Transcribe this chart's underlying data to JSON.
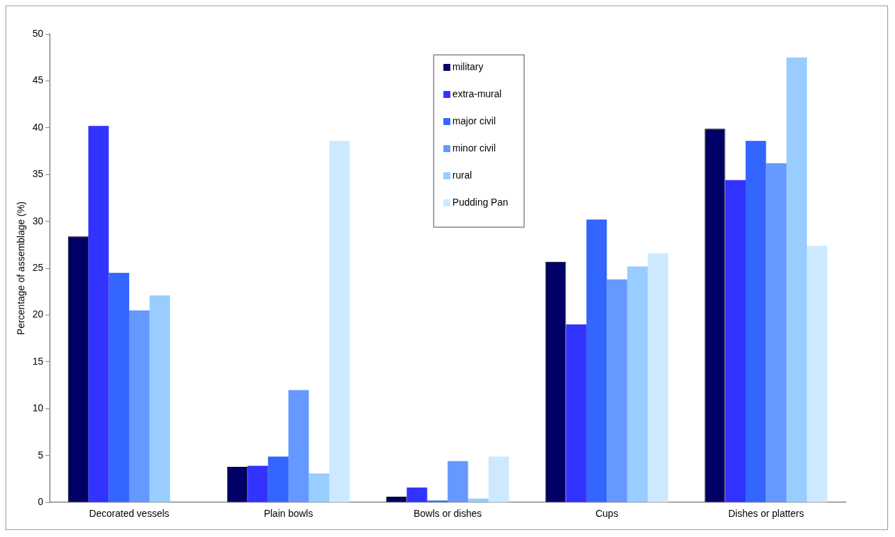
{
  "chart_data": {
    "type": "bar",
    "ylabel": "Percentage of assemblage (%)",
    "categories": [
      "Decorated vessels",
      "Plain bowls",
      "Bowls or dishes",
      "Cups",
      "Dishes or platters"
    ],
    "series": [
      {
        "name": "military",
        "color": "#000066",
        "values": [
          28.4,
          3.8,
          0.6,
          25.7,
          39.9
        ]
      },
      {
        "name": "extra-mural",
        "color": "#3333ff",
        "values": [
          40.2,
          3.9,
          1.6,
          19.0,
          34.4
        ]
      },
      {
        "name": "major civil",
        "color": "#3366ff",
        "values": [
          24.5,
          4.9,
          0.2,
          30.2,
          38.6
        ]
      },
      {
        "name": "minor civil",
        "color": "#6699ff",
        "values": [
          20.5,
          12.0,
          4.4,
          23.8,
          36.2
        ]
      },
      {
        "name": "rural",
        "color": "#99ccff",
        "values": [
          22.1,
          3.1,
          0.4,
          25.2,
          47.5
        ]
      },
      {
        "name": "Pudding Pan",
        "color": "#cce9ff",
        "values": [
          null,
          38.6,
          4.9,
          26.6,
          27.4
        ]
      }
    ],
    "ylim": [
      0,
      50
    ],
    "yticks": [
      0,
      5,
      10,
      15,
      20,
      25,
      30,
      35,
      40,
      45,
      50
    ],
    "grid": false,
    "legend": "top"
  }
}
